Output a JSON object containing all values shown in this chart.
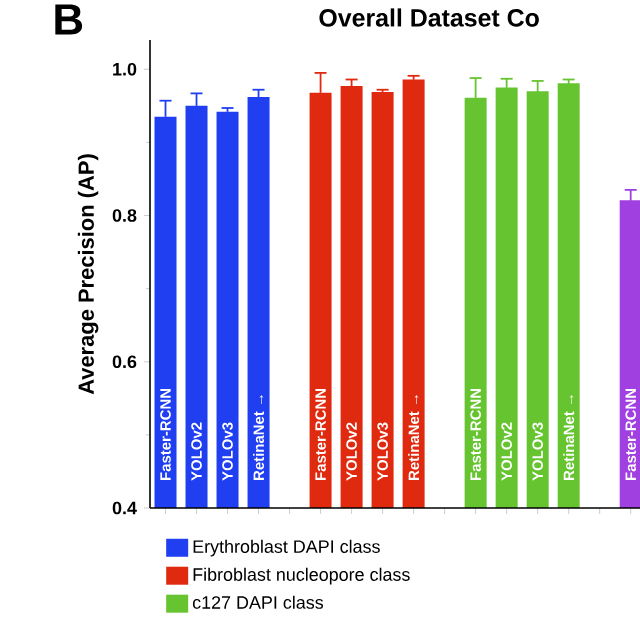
{
  "chart_data": {
    "type": "bar",
    "title": "Overall Dataset Co",
    "ylabel": "Average Precision (AP)",
    "annotations": [
      "B"
    ],
    "categories": [
      "Faster-RCNN",
      "YOLOv2",
      "YOLOv3",
      "RetinaNet →",
      null,
      "Faster-RCNN",
      "YOLOv2",
      "YOLOv3",
      "RetinaNet →",
      null,
      "Faster-RCNN",
      "YOLOv2",
      "YOLOv3",
      "RetinaNet →",
      null,
      "Faster-RCNN"
    ],
    "series": [
      {
        "name": "Erythroblast DAPI class",
        "color": "#1f3ff0",
        "values": [
          0.935,
          0.95,
          0.942,
          0.962,
          null,
          null,
          null,
          null,
          null,
          null,
          null,
          null,
          null,
          null,
          null,
          null
        ],
        "errors": [
          0.022,
          0.017,
          0.005,
          0.01,
          null,
          null,
          null,
          null,
          null,
          null,
          null,
          null,
          null,
          null,
          null,
          null
        ]
      },
      {
        "name": "Fibroblast nucleopore class",
        "color": "#e02a10",
        "values": [
          null,
          null,
          null,
          null,
          null,
          0.968,
          0.977,
          0.969,
          0.986,
          null,
          null,
          null,
          null,
          null,
          null,
          null
        ],
        "errors": [
          null,
          null,
          null,
          null,
          null,
          0.027,
          0.009,
          0.003,
          0.005,
          null,
          null,
          null,
          null,
          null,
          null,
          null
        ]
      },
      {
        "name": "c127 DAPI class",
        "color": "#66c430",
        "values": [
          null,
          null,
          null,
          null,
          null,
          null,
          null,
          null,
          null,
          null,
          0.961,
          0.975,
          0.97,
          0.981,
          null,
          null
        ],
        "errors": [
          null,
          null,
          null,
          null,
          null,
          null,
          null,
          null,
          null,
          null,
          0.027,
          0.012,
          0.014,
          0.005,
          null,
          null
        ]
      },
      {
        "color": "#a040e0",
        "values": [
          null,
          null,
          null,
          null,
          null,
          null,
          null,
          null,
          null,
          null,
          null,
          null,
          null,
          null,
          null,
          0.821
        ],
        "errors": [
          null,
          null,
          null,
          null,
          null,
          null,
          null,
          null,
          null,
          null,
          null,
          null,
          null,
          null,
          null,
          0.014
        ]
      }
    ],
    "ylim": [
      0.4,
      1.04
    ],
    "yticks": [
      0.4,
      {
        "value": 0.5,
        "label": null
      },
      0.6,
      {
        "value": 0.7,
        "label": null
      },
      0.8,
      {
        "value": 0.9,
        "label": null
      },
      {
        "value": 1.0,
        "label": "1.0"
      }
    ],
    "legend": "bottom"
  }
}
